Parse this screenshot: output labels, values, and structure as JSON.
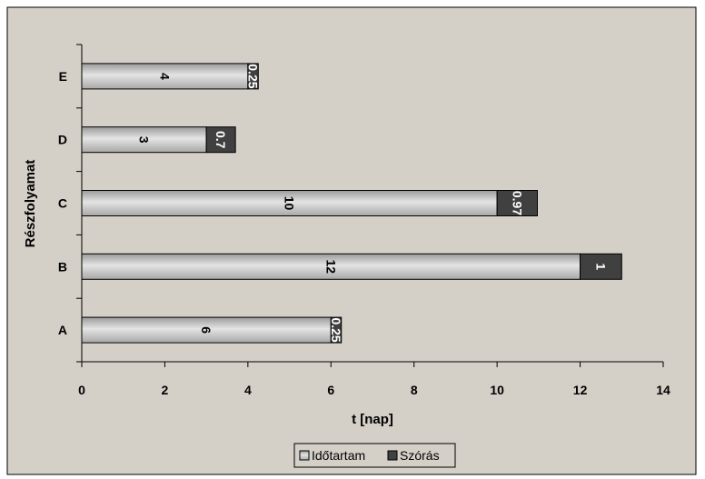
{
  "chart_data": {
    "type": "bar",
    "orientation": "horizontal",
    "stacked": true,
    "categories": [
      "A",
      "B",
      "C",
      "D",
      "E"
    ],
    "series": [
      {
        "name": "Időtartam",
        "values": [
          6,
          12,
          10,
          3,
          4
        ],
        "color": "#c0c0c0"
      },
      {
        "name": "Szórás",
        "values": [
          0.25,
          1,
          0.97,
          0.7,
          0.25
        ],
        "color": "#404040"
      }
    ],
    "data_labels": {
      "Időtartam": [
        "6",
        "12",
        "10",
        "3",
        "4"
      ],
      "Szórás": [
        "0.25",
        "1",
        "0.97",
        "0.7",
        "0.25"
      ]
    },
    "xlabel": "t [nap]",
    "ylabel": "Részfolyamat",
    "xlim": [
      0,
      14
    ],
    "xticks": [
      "0",
      "2",
      "4",
      "6",
      "8",
      "10",
      "12",
      "14"
    ],
    "grid": false,
    "legend_position": "bottom",
    "background_color": "#d4d0c8"
  }
}
